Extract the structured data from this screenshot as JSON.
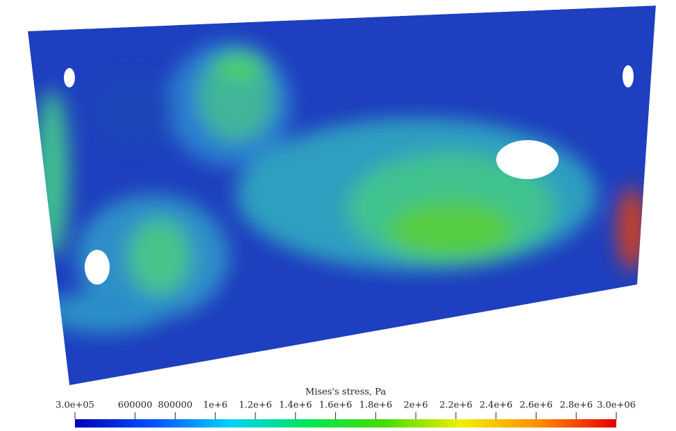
{
  "colorbar": {
    "title": "Mises's stress, Pa",
    "lim": [
      300000,
      3000000
    ],
    "ticks": [
      {
        "value": 300000,
        "label": "3.0e+05"
      },
      600000,
      800000,
      {
        "value": 1000000,
        "label": "1e+6"
      },
      {
        "value": 1200000,
        "label": "1.2e+6"
      },
      {
        "value": 1400000,
        "label": "1.4e+6"
      },
      {
        "value": 1600000,
        "label": "1.6e+6"
      },
      {
        "value": 1800000,
        "label": "1.8e+6"
      },
      {
        "value": 2000000,
        "label": "2e+6"
      },
      {
        "value": 2200000,
        "label": "2.2e+6"
      },
      {
        "value": 2400000,
        "label": "2.4e+6"
      },
      {
        "value": 2600000,
        "label": "2.6e+6"
      },
      {
        "value": 2800000,
        "label": "2.8e+6"
      },
      {
        "value": 3000000,
        "label": "3.0e+06"
      }
    ],
    "colors": [
      "#0000b4",
      "#0050ff",
      "#00d2ff",
      "#00e65a",
      "#46dc00",
      "#f0f000",
      "#ff8c00",
      "#e60000"
    ]
  }
}
